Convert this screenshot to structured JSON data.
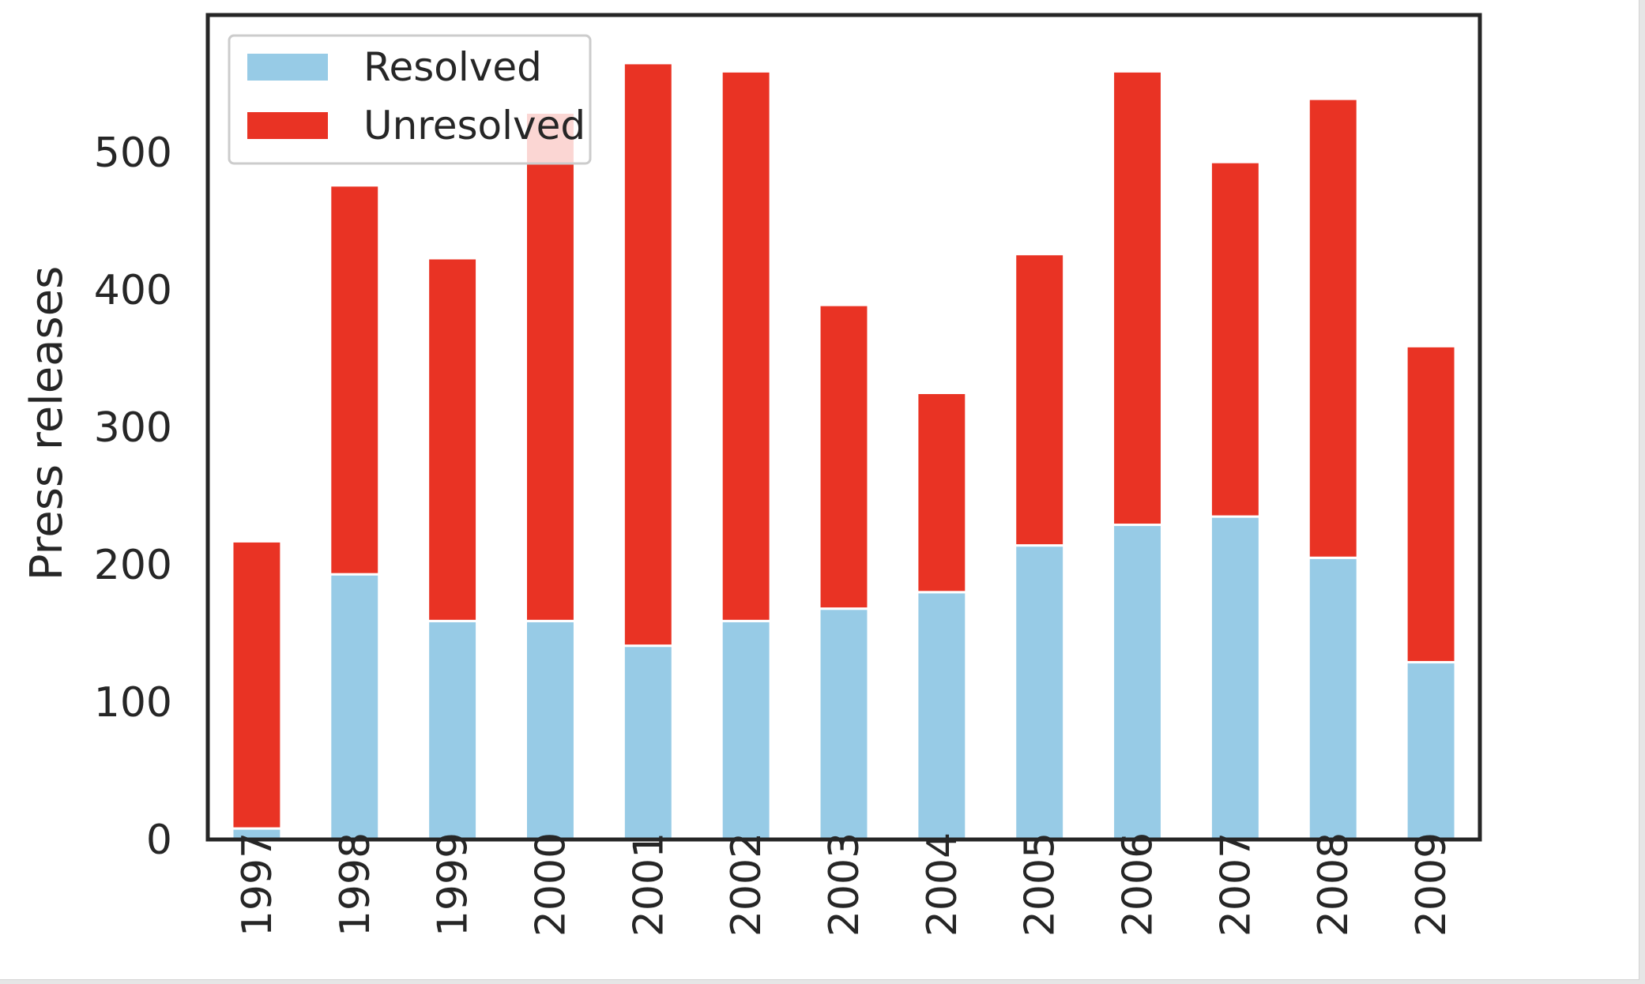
{
  "chart_data": {
    "type": "bar",
    "stacked": true,
    "categories": [
      "1997",
      "1998",
      "1999",
      "2000",
      "2001",
      "2002",
      "2003",
      "2004",
      "2005",
      "2006",
      "2007",
      "2008",
      "2009"
    ],
    "series": [
      {
        "name": "Resolved",
        "color": "#97cbe6",
        "values": [
          8,
          193,
          159,
          159,
          141,
          159,
          168,
          180,
          214,
          229,
          235,
          205,
          129
        ]
      },
      {
        "name": "Unresolved",
        "color": "#e93324",
        "values": [
          209,
          283,
          264,
          370,
          424,
          400,
          221,
          145,
          212,
          330,
          258,
          334,
          230
        ]
      }
    ],
    "title": "",
    "xlabel": "",
    "ylabel": "Press releases",
    "ylim": [
      0,
      600
    ],
    "yticks": [
      0,
      100,
      200,
      300,
      400,
      500
    ],
    "grid": false,
    "legend_position": "top-left",
    "x_tick_rotation": "vertical"
  }
}
